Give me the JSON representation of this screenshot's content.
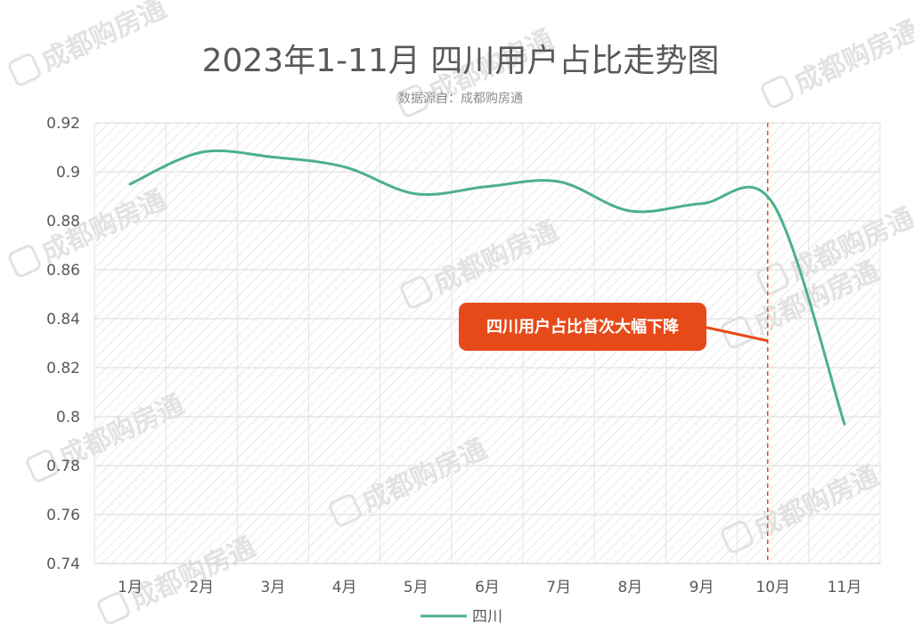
{
  "chart_data": {
    "type": "line",
    "title": "2023年1-11月 四川用户占比走势图",
    "subtitle": "数据源自：成都购房通",
    "categories": [
      "1月",
      "2月",
      "3月",
      "4月",
      "5月",
      "6月",
      "7月",
      "8月",
      "9月",
      "10月",
      "11月"
    ],
    "series": [
      {
        "name": "四川",
        "color": "#4caf8e",
        "values": [
          0.895,
          0.908,
          0.906,
          0.902,
          0.891,
          0.894,
          0.896,
          0.884,
          0.887,
          0.887,
          0.797
        ]
      }
    ],
    "ylim": [
      0.74,
      0.92
    ],
    "yticks": [
      "0.92",
      "0.9",
      "0.88",
      "0.86",
      "0.84",
      "0.82",
      "0.8",
      "0.78",
      "0.76",
      "0.74"
    ],
    "grid": true,
    "legend_position": "bottom",
    "annotation": {
      "text": "四川用户占比首次大幅下降",
      "category": "10月",
      "value": 0.831,
      "color": "#e64a19"
    },
    "reference_line": {
      "category": "10月",
      "color": "#e64a19",
      "style": "dashed"
    },
    "watermark": "成都购房通"
  }
}
